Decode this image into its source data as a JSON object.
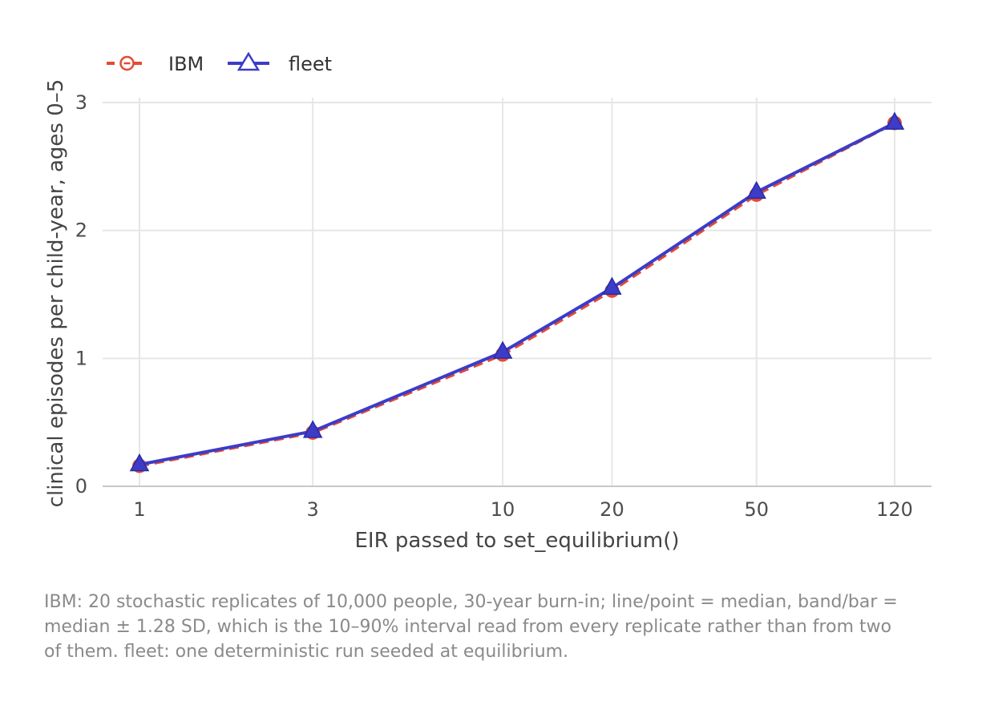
{
  "chart_data": {
    "type": "line",
    "x_scale": "log",
    "x": [
      1,
      3,
      10,
      20,
      50,
      120
    ],
    "x_tick_labels": [
      "1",
      "3",
      "10",
      "20",
      "50",
      "120"
    ],
    "y_ticks": [
      0,
      1,
      2,
      3
    ],
    "y_tick_labels": [
      "0",
      "1",
      "2",
      "3"
    ],
    "ylim": [
      0,
      3.1
    ],
    "xlabel": "EIR passed to set_equilibrium()",
    "ylabel": "clinical episodes per child-year, ages 0–5",
    "grid": true,
    "legend_position": "top-left",
    "series": [
      {
        "name": "IBM",
        "color": "#e34a33",
        "line_style": "dashed",
        "marker": "circle",
        "values": [
          0.16,
          0.42,
          1.03,
          1.53,
          2.28,
          2.84
        ]
      },
      {
        "name": "fleet",
        "color": "#3c3cc8",
        "line_style": "solid",
        "marker": "triangle",
        "values": [
          0.17,
          0.43,
          1.05,
          1.55,
          2.3,
          2.84
        ]
      }
    ]
  },
  "caption": "IBM: 20 stochastic replicates of 10,000 people, 30-year burn-in; line/point = median, band/bar = median ± 1.28 SD, which is the 10–90% interval read from every replicate rather than from two of them. fleet: one deterministic run seeded at equilibrium."
}
